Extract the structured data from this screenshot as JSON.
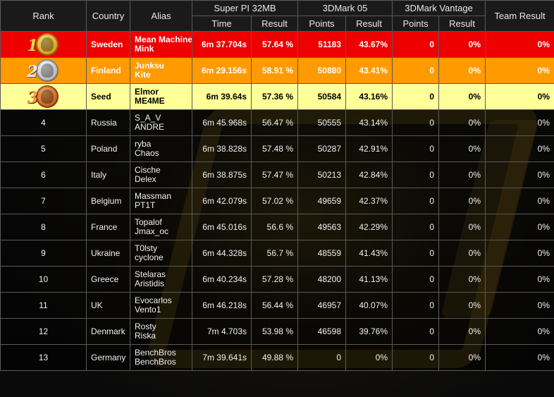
{
  "headers": {
    "rank": "Rank",
    "country": "Country",
    "alias": "Alias",
    "superpi": "Super PI 32MB",
    "mark05": "3DMark 05",
    "vantage": "3DMark Vantage",
    "team": "Team Result",
    "time": "Time",
    "result": "Result",
    "points": "Points"
  },
  "rows": [
    {
      "rank": "1",
      "medal": "gold",
      "country": "Sweden",
      "alias1": "Mean Machine",
      "alias2": "Mink",
      "spi_time": "6m 37.704s",
      "spi_result": "57.64 %",
      "m05_points": "51183",
      "m05_result": "43.67%",
      "v_points": "0",
      "v_result": "0%",
      "team": "0%"
    },
    {
      "rank": "2",
      "medal": "silver",
      "country": "Finland",
      "alias1": "Junksu",
      "alias2": "Kite",
      "spi_time": "6m 29.156s",
      "spi_result": "58.91 %",
      "m05_points": "50880",
      "m05_result": "43.41%",
      "v_points": "0",
      "v_result": "0%",
      "team": "0%"
    },
    {
      "rank": "3",
      "medal": "bronze",
      "country": "Seed",
      "alias1": "Elmor",
      "alias2": "ME4ME",
      "spi_time": "6m 39.64s",
      "spi_result": "57.36 %",
      "m05_points": "50584",
      "m05_result": "43.16%",
      "v_points": "0",
      "v_result": "0%",
      "team": "0%"
    },
    {
      "rank": "4",
      "country": "Russia",
      "alias1": "S_A_V",
      "alias2": "ANDRE",
      "spi_time": "6m 45.968s",
      "spi_result": "56.47 %",
      "m05_points": "50555",
      "m05_result": "43.14%",
      "v_points": "0",
      "v_result": "0%",
      "team": "0%"
    },
    {
      "rank": "5",
      "country": "Poland",
      "alias1": "ryba",
      "alias2": "Chaos",
      "spi_time": "6m 38.828s",
      "spi_result": "57.48 %",
      "m05_points": "50287",
      "m05_result": "42.91%",
      "v_points": "0",
      "v_result": "0%",
      "team": "0%"
    },
    {
      "rank": "6",
      "country": "Italy",
      "alias1": "Cische",
      "alias2": "Delex",
      "spi_time": "6m 38.875s",
      "spi_result": "57.47 %",
      "m05_points": "50213",
      "m05_result": "42.84%",
      "v_points": "0",
      "v_result": "0%",
      "team": "0%"
    },
    {
      "rank": "7",
      "country": "Belgium",
      "alias1": "Massman",
      "alias2": "PT1T",
      "spi_time": "6m 42.079s",
      "spi_result": "57.02 %",
      "m05_points": "49659",
      "m05_result": "42.37%",
      "v_points": "0",
      "v_result": "0%",
      "team": "0%"
    },
    {
      "rank": "8",
      "country": "France",
      "alias1": "Topalof",
      "alias2": "Jmax_oc",
      "spi_time": "6m 45.016s",
      "spi_result": "56.6 %",
      "m05_points": "49563",
      "m05_result": "42.29%",
      "v_points": "0",
      "v_result": "0%",
      "team": "0%"
    },
    {
      "rank": "9",
      "country": "Ukraine",
      "alias1": "T0lsty",
      "alias2": "cyclone",
      "spi_time": "6m 44.328s",
      "spi_result": "56.7 %",
      "m05_points": "48559",
      "m05_result": "41.43%",
      "v_points": "0",
      "v_result": "0%",
      "team": "0%"
    },
    {
      "rank": "10",
      "country": "Greece",
      "alias1": "Stelaras",
      "alias2": "Aristidis",
      "spi_time": "6m 40.234s",
      "spi_result": "57.28 %",
      "m05_points": "48200",
      "m05_result": "41.13%",
      "v_points": "0",
      "v_result": "0%",
      "team": "0%"
    },
    {
      "rank": "11",
      "country": "UK",
      "alias1": "Evocarlos",
      "alias2": "Vento1",
      "spi_time": "6m 46.218s",
      "spi_result": "56.44 %",
      "m05_points": "46957",
      "m05_result": "40.07%",
      "v_points": "0",
      "v_result": "0%",
      "team": "0%"
    },
    {
      "rank": "12",
      "country": "Denmark",
      "alias1": "Rosty",
      "alias2": "Riska",
      "spi_time": "7m 4.703s",
      "spi_result": "53.98 %",
      "m05_points": "46598",
      "m05_result": "39.76%",
      "v_points": "0",
      "v_result": "0%",
      "team": "0%"
    },
    {
      "rank": "13",
      "country": "Germany",
      "alias1": "BenchBros",
      "alias2": "BenchBros",
      "spi_time": "7m 39.641s",
      "spi_result": "49.88 %",
      "m05_points": "0",
      "m05_result": "0%",
      "v_points": "0",
      "v_result": "0%",
      "team": "0%"
    }
  ]
}
